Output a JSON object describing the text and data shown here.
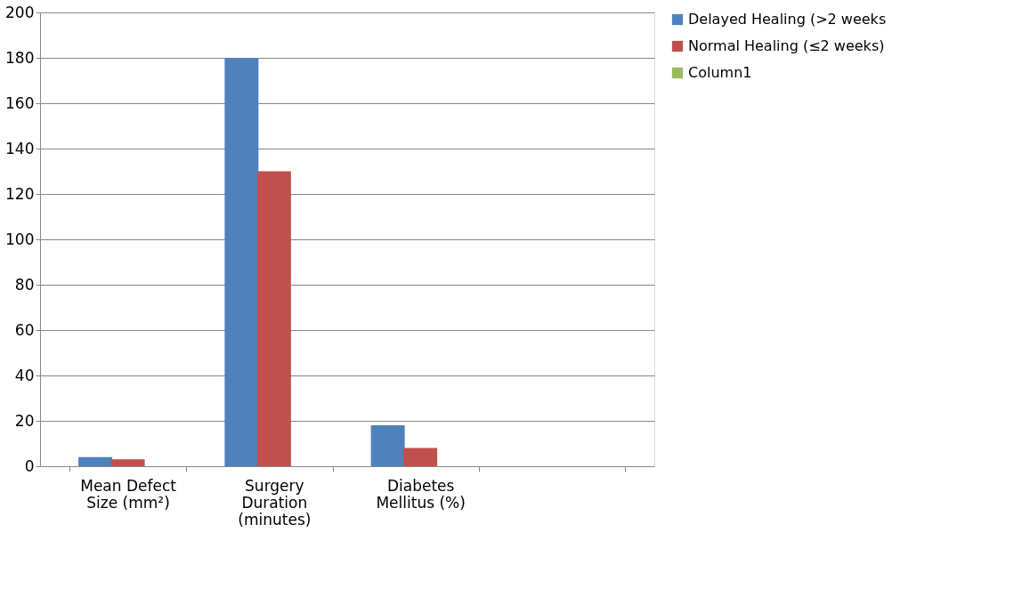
{
  "chart_data": {
    "type": "bar",
    "categories": [
      "Mean Defect Size (mm²)",
      "Surgery Duration (minutes)",
      "Diabetes Mellitus (%)",
      null
    ],
    "series": [
      {
        "name": "Delayed Healing (>2 weeks",
        "color": "#4f81bd",
        "values": [
          4,
          180,
          18,
          null
        ]
      },
      {
        "name": "Normal Healing (≤2 weeks)",
        "color": "#c0504d",
        "values": [
          3,
          130,
          8,
          null
        ]
      },
      {
        "name": "Column1",
        "color": "#9bbb59",
        "values": [
          null,
          null,
          null,
          null
        ]
      }
    ],
    "ylim": [
      0,
      200
    ],
    "yticks": [
      0,
      20,
      40,
      60,
      80,
      100,
      120,
      140,
      160,
      180,
      200
    ],
    "grid": "y",
    "legend": "right"
  }
}
